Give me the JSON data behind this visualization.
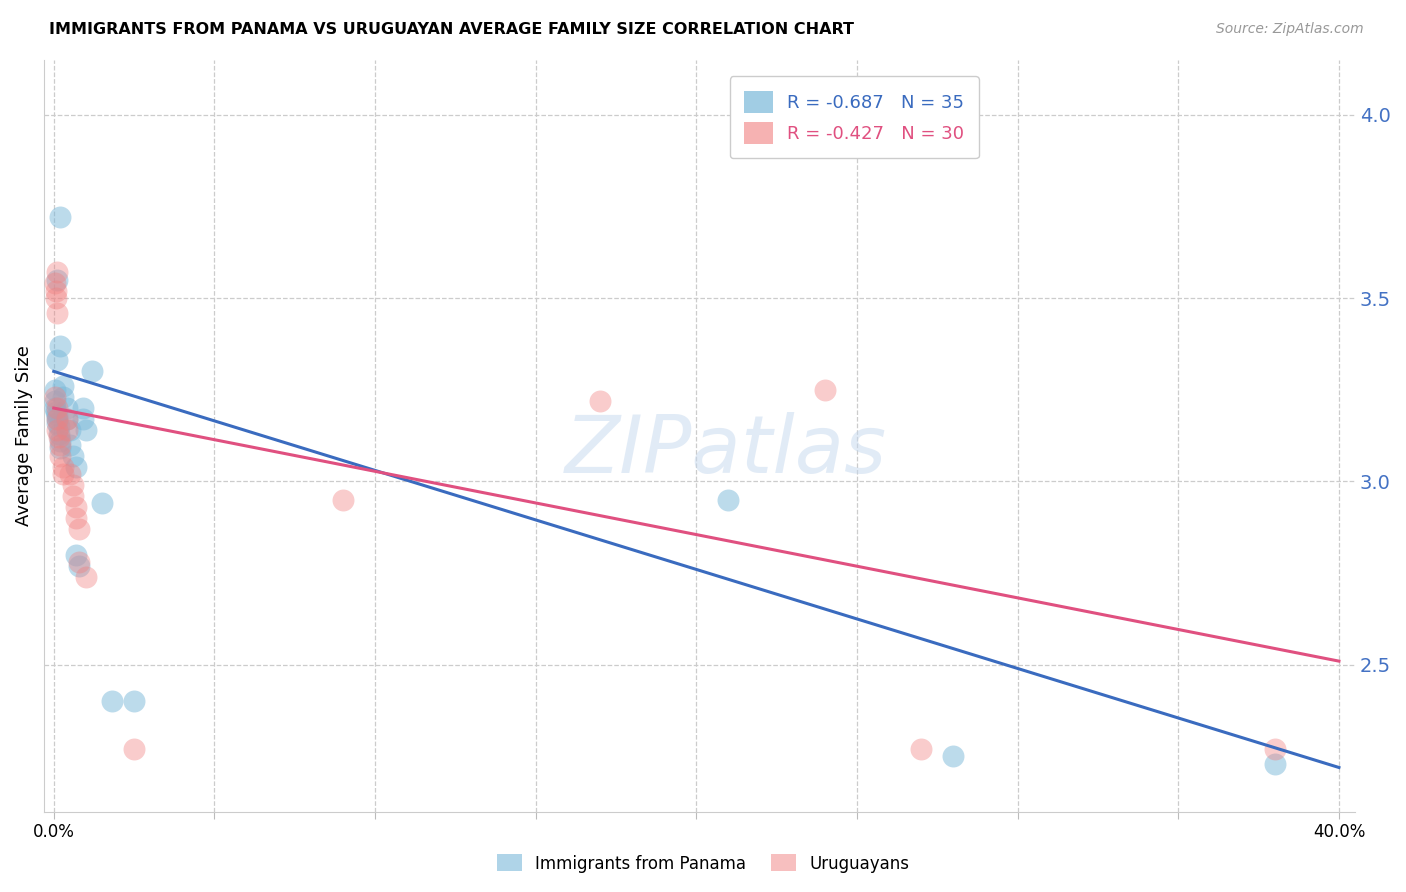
{
  "title": "IMMIGRANTS FROM PANAMA VS URUGUAYAN AVERAGE FAMILY SIZE CORRELATION CHART",
  "source": "Source: ZipAtlas.com",
  "ylabel": "Average Family Size",
  "yticks": [
    2.5,
    3.0,
    3.5,
    4.0
  ],
  "ytick_color": "#4472c4",
  "ymin": 2.1,
  "ymax": 4.15,
  "xmin": -0.003,
  "xmax": 0.405,
  "xticks": [
    0.0,
    0.05,
    0.1,
    0.15,
    0.2,
    0.25,
    0.3,
    0.35,
    0.4
  ],
  "blue_color": "#7ab8d9",
  "pink_color": "#f08080",
  "blue_line_color": "#3a6bbf",
  "pink_line_color": "#e05080",
  "watermark_text": "ZIPatlas",
  "blue_scatter": [
    [
      0.0005,
      3.25
    ],
    [
      0.001,
      3.55
    ],
    [
      0.002,
      3.72
    ],
    [
      0.002,
      3.37
    ],
    [
      0.001,
      3.33
    ],
    [
      0.0005,
      3.22
    ],
    [
      0.0005,
      3.2
    ],
    [
      0.0008,
      3.19
    ],
    [
      0.001,
      3.18
    ],
    [
      0.001,
      3.17
    ],
    [
      0.001,
      3.16
    ],
    [
      0.0015,
      3.15
    ],
    [
      0.0015,
      3.13
    ],
    [
      0.002,
      3.11
    ],
    [
      0.002,
      3.09
    ],
    [
      0.003,
      3.26
    ],
    [
      0.003,
      3.23
    ],
    [
      0.004,
      3.2
    ],
    [
      0.004,
      3.17
    ],
    [
      0.005,
      3.14
    ],
    [
      0.005,
      3.1
    ],
    [
      0.006,
      3.07
    ],
    [
      0.007,
      3.04
    ],
    [
      0.007,
      2.8
    ],
    [
      0.008,
      2.77
    ],
    [
      0.009,
      3.2
    ],
    [
      0.009,
      3.17
    ],
    [
      0.01,
      3.14
    ],
    [
      0.012,
      3.3
    ],
    [
      0.015,
      2.94
    ],
    [
      0.018,
      2.4
    ],
    [
      0.025,
      2.4
    ],
    [
      0.21,
      2.95
    ],
    [
      0.28,
      2.25
    ],
    [
      0.38,
      2.23
    ]
  ],
  "pink_scatter": [
    [
      0.0005,
      3.54
    ],
    [
      0.001,
      3.57
    ],
    [
      0.001,
      3.46
    ],
    [
      0.0005,
      3.23
    ],
    [
      0.001,
      3.2
    ],
    [
      0.001,
      3.17
    ],
    [
      0.0008,
      3.52
    ],
    [
      0.0008,
      3.5
    ],
    [
      0.001,
      3.14
    ],
    [
      0.0015,
      3.12
    ],
    [
      0.002,
      3.1
    ],
    [
      0.002,
      3.07
    ],
    [
      0.003,
      3.04
    ],
    [
      0.003,
      3.02
    ],
    [
      0.004,
      3.17
    ],
    [
      0.004,
      3.14
    ],
    [
      0.005,
      3.02
    ],
    [
      0.006,
      2.99
    ],
    [
      0.006,
      2.96
    ],
    [
      0.007,
      2.93
    ],
    [
      0.007,
      2.9
    ],
    [
      0.008,
      2.87
    ],
    [
      0.008,
      2.78
    ],
    [
      0.01,
      2.74
    ],
    [
      0.025,
      2.27
    ],
    [
      0.09,
      2.95
    ],
    [
      0.17,
      3.22
    ],
    [
      0.24,
      3.25
    ],
    [
      0.27,
      2.27
    ],
    [
      0.38,
      2.27
    ]
  ],
  "blue_trendline_x": [
    0.0,
    0.4
  ],
  "blue_trendline_y": [
    3.3,
    2.22
  ],
  "pink_trendline_x": [
    0.0,
    0.4
  ],
  "pink_trendline_y": [
    3.2,
    2.51
  ]
}
